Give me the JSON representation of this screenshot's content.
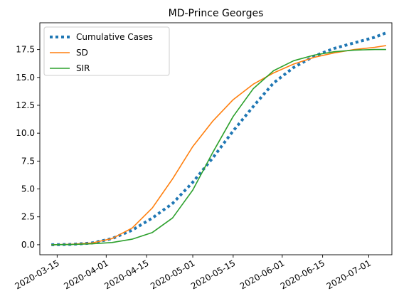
{
  "chart_data": {
    "type": "line",
    "title": "MD-Prince Georges",
    "xlabel": "",
    "ylabel": "",
    "xlim": [
      "2020-03-09",
      "2020-07-09"
    ],
    "ylim": [
      -0.9,
      19.9
    ],
    "x_ticks": [
      "2020-03-15",
      "2020-04-01",
      "2020-04-15",
      "2020-05-01",
      "2020-05-15",
      "2020-06-01",
      "2020-06-15",
      "2020-07-01"
    ],
    "y_ticks": [
      "0.0",
      "2.5",
      "5.0",
      "7.5",
      "10.0",
      "12.5",
      "15.0",
      "17.5"
    ],
    "grid": false,
    "legend": "upper left",
    "series": [
      {
        "name": "Cumulative Cases",
        "color": "#1f77b4",
        "style": "dotted",
        "points": [
          [
            "2020-03-13",
            0.0
          ],
          [
            "2020-03-20",
            0.03
          ],
          [
            "2020-03-27",
            0.15
          ],
          [
            "2020-04-03",
            0.55
          ],
          [
            "2020-04-10",
            1.3
          ],
          [
            "2020-04-17",
            2.4
          ],
          [
            "2020-04-24",
            3.7
          ],
          [
            "2020-05-01",
            5.6
          ],
          [
            "2020-05-08",
            7.8
          ],
          [
            "2020-05-15",
            10.2
          ],
          [
            "2020-05-22",
            12.4
          ],
          [
            "2020-05-29",
            14.5
          ],
          [
            "2020-06-05",
            15.9
          ],
          [
            "2020-06-12",
            16.9
          ],
          [
            "2020-06-19",
            17.6
          ],
          [
            "2020-06-26",
            18.1
          ],
          [
            "2020-07-03",
            18.6
          ],
          [
            "2020-07-07",
            19.0
          ]
        ]
      },
      {
        "name": "SD",
        "color": "#ff7f0e",
        "style": "solid",
        "points": [
          [
            "2020-03-13",
            0.0
          ],
          [
            "2020-03-20",
            0.04
          ],
          [
            "2020-03-27",
            0.15
          ],
          [
            "2020-04-03",
            0.55
          ],
          [
            "2020-04-10",
            1.5
          ],
          [
            "2020-04-17",
            3.3
          ],
          [
            "2020-04-24",
            5.9
          ],
          [
            "2020-05-01",
            8.8
          ],
          [
            "2020-05-08",
            11.1
          ],
          [
            "2020-05-15",
            13.0
          ],
          [
            "2020-05-22",
            14.4
          ],
          [
            "2020-05-29",
            15.4
          ],
          [
            "2020-06-05",
            16.2
          ],
          [
            "2020-06-12",
            16.8
          ],
          [
            "2020-06-19",
            17.2
          ],
          [
            "2020-06-26",
            17.5
          ],
          [
            "2020-07-03",
            17.7
          ],
          [
            "2020-07-07",
            17.85
          ]
        ]
      },
      {
        "name": "SIR",
        "color": "#2ca02c",
        "style": "solid",
        "points": [
          [
            "2020-03-13",
            0.0
          ],
          [
            "2020-03-20",
            0.02
          ],
          [
            "2020-03-27",
            0.08
          ],
          [
            "2020-04-03",
            0.2
          ],
          [
            "2020-04-10",
            0.5
          ],
          [
            "2020-04-17",
            1.1
          ],
          [
            "2020-04-24",
            2.4
          ],
          [
            "2020-05-01",
            4.9
          ],
          [
            "2020-05-08",
            8.3
          ],
          [
            "2020-05-15",
            11.5
          ],
          [
            "2020-05-22",
            14.0
          ],
          [
            "2020-05-29",
            15.6
          ],
          [
            "2020-06-05",
            16.5
          ],
          [
            "2020-06-12",
            17.0
          ],
          [
            "2020-06-19",
            17.3
          ],
          [
            "2020-06-26",
            17.45
          ],
          [
            "2020-07-03",
            17.5
          ],
          [
            "2020-07-07",
            17.5
          ]
        ]
      }
    ]
  }
}
